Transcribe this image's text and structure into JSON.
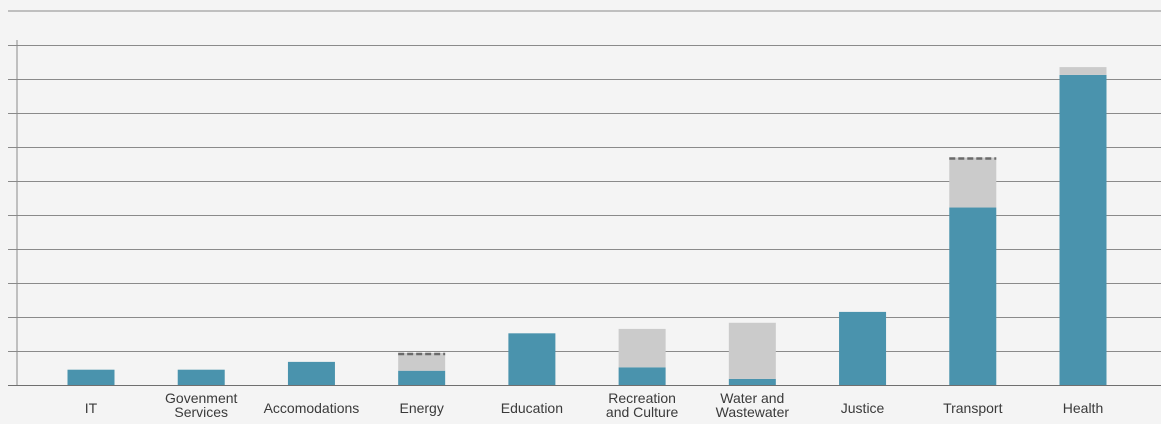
{
  "chart_data": {
    "type": "bar",
    "stacked": true,
    "categories": [
      [
        "IT"
      ],
      [
        "Govenment",
        "Services"
      ],
      [
        "Accomodations"
      ],
      [
        "Energy"
      ],
      [
        "Education"
      ],
      [
        "Recreation",
        "and Culture"
      ],
      [
        "Water and",
        "Wastewater"
      ],
      [
        "Justice"
      ],
      [
        "Transport"
      ],
      [
        "Health"
      ]
    ],
    "series": [
      {
        "values": [
          0.45,
          0.45,
          0.68,
          0.42,
          1.52,
          0.52,
          0.18,
          2.15,
          5.22,
          9.12
        ],
        "color": "#4a93ad"
      },
      {
        "values": [
          0,
          0,
          0,
          0.52,
          0,
          1.13,
          1.65,
          0,
          1.47,
          0.23
        ],
        "color": "#cbcbcb"
      }
    ],
    "dashed_cap": [
      false,
      false,
      false,
      true,
      false,
      false,
      false,
      false,
      true,
      false
    ],
    "ylim": [
      0,
      11.0
    ],
    "y_gridlines": [
      0,
      1,
      2,
      3,
      4,
      5,
      6,
      7,
      8,
      9,
      10,
      11
    ],
    "grid": true,
    "legend": "none",
    "title": "",
    "xlabel": "",
    "ylabel": ""
  }
}
